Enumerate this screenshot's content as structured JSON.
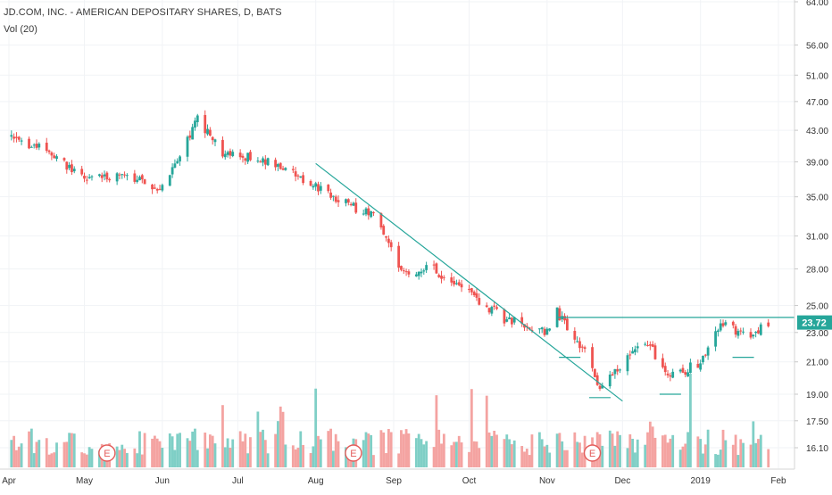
{
  "header": {
    "symbol_title": "JD.COM, INC. - AMERICAN DEPOSITARY SHARES, D, BATS",
    "volume_label": "Vol (20)"
  },
  "colors": {
    "up": "#26a69a",
    "down": "#ef5350",
    "up_volume": "#7fcfc6",
    "down_volume": "#f4a3a1",
    "trendline": "#26a69a",
    "price_badge": "#26a69a",
    "earnings_marker": "#e35d5b",
    "axis_text": "#333333"
  },
  "price_axis": {
    "ticks": [
      "64.00",
      "56.00",
      "51.00",
      "47.00",
      "43.00",
      "39.00",
      "35.00",
      "31.00",
      "28.00",
      "25.00",
      "23.00",
      "21.00",
      "19.00",
      "17.50",
      "16.10"
    ],
    "current_price": "23.72"
  },
  "time_axis": {
    "labels": [
      "Apr",
      "May",
      "Jun",
      "Jul",
      "Aug",
      "Sep",
      "Oct",
      "Nov",
      "Dec",
      "2019",
      "Feb"
    ]
  },
  "earnings_markers": [
    "E",
    "E",
    "E"
  ],
  "chart_data": {
    "type": "candlestick",
    "title": "JD.COM, INC. - AMERICAN DEPOSITARY SHARES, D, BATS",
    "y_scale": "log",
    "ylim": [
      16.1,
      64.0
    ],
    "x": [
      "2018-04-01",
      "2018-05-01",
      "2018-06-01",
      "2018-07-01",
      "2018-08-01",
      "2018-09-01",
      "2018-10-01",
      "2018-11-01",
      "2018-12-01",
      "2019-01-01",
      "2019-02-01"
    ],
    "last_price": 23.72,
    "resistance_level": 24.1,
    "trendline": {
      "start": {
        "date": "2018-08-01",
        "price": 38.8
      },
      "end": {
        "date": "2018-12-01",
        "price": 18.6
      }
    },
    "support_marks": [
      {
        "date": "2018-11-10",
        "price": 21.3
      },
      {
        "date": "2018-11-22",
        "price": 18.8
      },
      {
        "date": "2018-12-20",
        "price": 19.0
      },
      {
        "date": "2019-01-18",
        "price": 21.3
      }
    ],
    "price_path": [
      {
        "date": "2018-04-01",
        "price": 42.0
      },
      {
        "date": "2018-04-15",
        "price": 40.5
      },
      {
        "date": "2018-05-01",
        "price": 37.0
      },
      {
        "date": "2018-05-15",
        "price": 37.3
      },
      {
        "date": "2018-06-01",
        "price": 36.0
      },
      {
        "date": "2018-06-15",
        "price": 44.5
      },
      {
        "date": "2018-06-25",
        "price": 40.0
      },
      {
        "date": "2018-07-10",
        "price": 39.5
      },
      {
        "date": "2018-07-31",
        "price": 36.3
      },
      {
        "date": "2018-08-15",
        "price": 34.0
      },
      {
        "date": "2018-08-25",
        "price": 33.0
      },
      {
        "date": "2018-09-05",
        "price": 27.5
      },
      {
        "date": "2018-09-15",
        "price": 28.3
      },
      {
        "date": "2018-10-01",
        "price": 26.0
      },
      {
        "date": "2018-10-15",
        "price": 24.0
      },
      {
        "date": "2018-11-01",
        "price": 23.0
      },
      {
        "date": "2018-11-05",
        "price": 24.5
      },
      {
        "date": "2018-11-15",
        "price": 22.0
      },
      {
        "date": "2018-11-22",
        "price": 19.2
      },
      {
        "date": "2018-12-01",
        "price": 21.0
      },
      {
        "date": "2018-12-10",
        "price": 22.5
      },
      {
        "date": "2018-12-20",
        "price": 20.0
      },
      {
        "date": "2019-01-01",
        "price": 21.0
      },
      {
        "date": "2019-01-10",
        "price": 23.8
      },
      {
        "date": "2019-01-20",
        "price": 22.5
      },
      {
        "date": "2019-01-28",
        "price": 23.72
      }
    ]
  }
}
